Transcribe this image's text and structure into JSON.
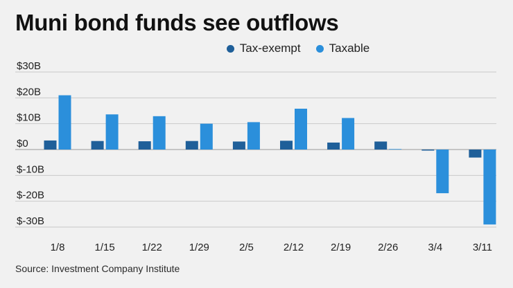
{
  "header": {
    "title": "Muni bond funds see outflows"
  },
  "footer": {
    "source": "Source: Investment Company Institute"
  },
  "colors": {
    "tax_exempt": "#1f5f99",
    "taxable": "#2b8fdb",
    "grid": "#c8c8c8",
    "zero": "#999999"
  },
  "chart_data": {
    "type": "bar",
    "title": "Muni bond funds see outflows",
    "xlabel": "",
    "ylabel": "",
    "ylim": [
      -30,
      30
    ],
    "yticks": [
      30,
      20,
      10,
      0,
      -10,
      -20,
      -30
    ],
    "ytick_labels": [
      "$30B",
      "$20B",
      "$10B",
      "$0",
      "$-10B",
      "$-20B",
      "$-30B"
    ],
    "categories": [
      "1/8",
      "1/15",
      "1/22",
      "1/29",
      "2/5",
      "2/12",
      "2/19",
      "2/26",
      "3/4",
      "3/11"
    ],
    "legend_position": "top-center",
    "series": [
      {
        "name": "Tax-exempt",
        "values": [
          3.5,
          3.3,
          3.2,
          3.3,
          3.1,
          3.4,
          2.7,
          3.1,
          -0.4,
          -3.1
        ]
      },
      {
        "name": "Taxable",
        "values": [
          21.0,
          13.6,
          12.9,
          10.0,
          10.6,
          15.8,
          12.2,
          0.2,
          -16.9,
          -29.0
        ]
      }
    ]
  }
}
